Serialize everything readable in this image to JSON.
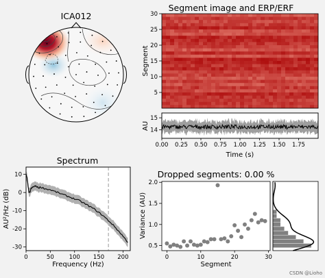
{
  "watermark": "CSDN @Lioho",
  "topomap": {
    "title": "ICA012",
    "colors": {
      "pos": "#b2182b",
      "pos_light": "#f4a582",
      "neg": "#4393c3",
      "neg_light": "#d1e5f0",
      "neutral": "#f7f7f7"
    }
  },
  "chart_data": [
    {
      "type": "heatmap",
      "id": "segment_image",
      "title": "Segment image and ERP/ERF",
      "xlabel": "",
      "ylabel": "Segment",
      "ylim": [
        0,
        30
      ],
      "yticks": [
        "5",
        "10",
        "15",
        "20",
        "25",
        "30"
      ],
      "colormap": "Reds"
    },
    {
      "type": "line",
      "id": "erp",
      "xlabel": "Time (s)",
      "ylabel": "AU",
      "xlim": [
        0,
        2
      ],
      "ylim": [
        13.3,
        15.4
      ],
      "xticks": [
        "0.00",
        "0.25",
        "0.50",
        "0.75",
        "1.00",
        "1.25",
        "1.50",
        "1.75"
      ],
      "yticks": [
        "14",
        "15"
      ],
      "mean_level": 14.25,
      "band_halfwidth": 0.45
    },
    {
      "type": "line",
      "id": "spectrum",
      "title": "Spectrum",
      "xlabel": "Frequency (Hz)",
      "ylabel": "AU²/Hz (dB)",
      "xlim": [
        0,
        215
      ],
      "ylim": [
        -32,
        14
      ],
      "xticks": [
        "0",
        "50",
        "100",
        "150",
        "200"
      ],
      "yticks": [
        "10",
        "0",
        "-10",
        "-20",
        "-30"
      ],
      "x": [
        0,
        2,
        4,
        6,
        8,
        10,
        14,
        18,
        22,
        26,
        30,
        40,
        50,
        60,
        70,
        80,
        90,
        100,
        110,
        120,
        130,
        140,
        150,
        160,
        170,
        180,
        190,
        200,
        210
      ],
      "y": [
        10,
        8,
        4,
        0,
        0,
        2,
        3,
        3.5,
        3.3,
        2.5,
        3,
        2,
        1.5,
        0.5,
        -0.5,
        -1.5,
        -2.5,
        -3.5,
        -4.5,
        -6,
        -7.5,
        -9,
        -11,
        -13,
        -15.5,
        -18,
        -21,
        -24,
        -27.5
      ],
      "band_halfwidth": 2.5,
      "vline_x": 170
    },
    {
      "type": "scatter",
      "id": "dropped",
      "title": "Dropped segments: 0.00 %",
      "xlabel": "Segment",
      "ylabel": "Variance (AU)",
      "xlim": [
        -1.5,
        30.5
      ],
      "ylim": [
        0.38,
        2.02
      ],
      "xticks": [
        "0",
        "10",
        "20",
        "30"
      ],
      "yticks": [
        "0.5",
        "1.0",
        "1.5",
        "2.0"
      ],
      "x": [
        0,
        1,
        2,
        3,
        4,
        5,
        6,
        7,
        8,
        9,
        10,
        11,
        12,
        13,
        14,
        15,
        16,
        17,
        18,
        19,
        20,
        21,
        22,
        23,
        24,
        25,
        26,
        27,
        28,
        29
      ],
      "y": [
        0.55,
        0.48,
        0.52,
        0.5,
        0.47,
        0.6,
        0.5,
        0.6,
        0.52,
        0.5,
        0.52,
        0.6,
        0.58,
        0.65,
        0.65,
        1.93,
        0.65,
        0.67,
        0.6,
        0.72,
        0.98,
        0.85,
        0.7,
        1.0,
        0.9,
        1.1,
        1.25,
        1.05,
        1.1,
        1.08
      ],
      "marker_color": "#808080"
    },
    {
      "type": "bar",
      "id": "variance_hist",
      "orientation": "horizontal",
      "bins": [
        0.45,
        0.55,
        0.65,
        0.75,
        0.85,
        0.95,
        1.05,
        1.15,
        1.25,
        1.35
      ],
      "values": [
        10,
        8,
        6,
        4,
        3,
        2,
        2,
        1,
        1,
        0
      ],
      "bar_color": "#808080"
    }
  ]
}
